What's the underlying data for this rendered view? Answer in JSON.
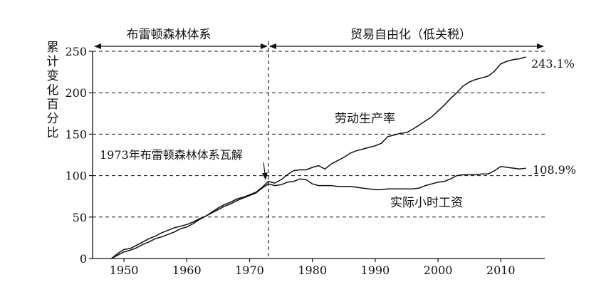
{
  "chart_data": {
    "type": "line",
    "xlim": [
      1945,
      2017
    ],
    "ylim": [
      0,
      250
    ],
    "x_ticks": [
      1950,
      1960,
      1970,
      1980,
      1990,
      2000,
      2010
    ],
    "y_ticks": [
      0,
      50,
      100,
      150,
      200,
      250
    ],
    "x_tick_labels": [
      "1950",
      "1960",
      "1970",
      "1980",
      "1990",
      "2000",
      "2010"
    ],
    "y_tick_labels": [
      "0",
      "50",
      "100",
      "150",
      "200",
      "250"
    ],
    "ylabel": "累计变化百分比",
    "xlabel": "",
    "grid": "dashed horizontal lines at y = 50, 100, 150, 200, 250",
    "period_bretton_woods": "布雷顿森林体系",
    "period_trade_liberalization": "贸易自由化（低关税）",
    "vline_year": 1973,
    "annotation_collapse": "1973年布雷顿森林体系瓦解",
    "annotation_productivity_end": "243.1%",
    "annotation_wage_end": "108.9%",
    "series": [
      {
        "name": "劳动生产率",
        "x": [
          1948,
          1949,
          1950,
          1951,
          1952,
          1953,
          1954,
          1955,
          1956,
          1957,
          1958,
          1959,
          1960,
          1961,
          1962,
          1963,
          1964,
          1965,
          1966,
          1967,
          1968,
          1969,
          1970,
          1971,
          1972,
          1973,
          1974,
          1975,
          1976,
          1977,
          1978,
          1979,
          1980,
          1981,
          1982,
          1983,
          1984,
          1985,
          1986,
          1987,
          1988,
          1989,
          1990,
          1991,
          1992,
          1993,
          1994,
          1995,
          1996,
          1997,
          1998,
          1999,
          2000,
          2001,
          2002,
          2003,
          2004,
          2005,
          2006,
          2007,
          2008,
          2009,
          2010,
          2011,
          2012,
          2013,
          2014
        ],
        "values": [
          0,
          4,
          8,
          10,
          13,
          17,
          20,
          24,
          26,
          29,
          32,
          36,
          38,
          42,
          47,
          51,
          56,
          61,
          65,
          68,
          72,
          74,
          77,
          80,
          86,
          93,
          91,
          95,
          101,
          106,
          107,
          107,
          110,
          112,
          108,
          114,
          118,
          122,
          127,
          130,
          132,
          134,
          136,
          139,
          147,
          149,
          151,
          152,
          156,
          161,
          166,
          171,
          178,
          185,
          193,
          200,
          208,
          213,
          216,
          218,
          220,
          226,
          235,
          238,
          240,
          241,
          243.1
        ]
      },
      {
        "name": "实际小时工资",
        "x": [
          1948,
          1949,
          1950,
          1951,
          1952,
          1953,
          1954,
          1955,
          1956,
          1957,
          1958,
          1959,
          1960,
          1961,
          1962,
          1963,
          1964,
          1965,
          1966,
          1967,
          1968,
          1969,
          1970,
          1971,
          1972,
          1973,
          1974,
          1975,
          1976,
          1977,
          1978,
          1979,
          1980,
          1981,
          1982,
          1983,
          1984,
          1985,
          1986,
          1987,
          1988,
          1989,
          1990,
          1991,
          1992,
          1993,
          1994,
          1995,
          1996,
          1997,
          1998,
          1999,
          2000,
          2001,
          2002,
          2003,
          2004,
          2005,
          2006,
          2007,
          2008,
          2009,
          2010,
          2011,
          2012,
          2013,
          2014
        ],
        "values": [
          0,
          6,
          11,
          12,
          16,
          20,
          24,
          27,
          31,
          34,
          37,
          39,
          41,
          44,
          48,
          51,
          55,
          59,
          63,
          66,
          70,
          73,
          76,
          79,
          85,
          90,
          88,
          89,
          92,
          93,
          96,
          95,
          90,
          88,
          88,
          88,
          87,
          87,
          87,
          86,
          85,
          84,
          83,
          83,
          84,
          84,
          84,
          84,
          84,
          85,
          88,
          90,
          92,
          93,
          96,
          100,
          101,
          101,
          101,
          102,
          102,
          106,
          111,
          110,
          109,
          108,
          108.9
        ]
      }
    ]
  }
}
